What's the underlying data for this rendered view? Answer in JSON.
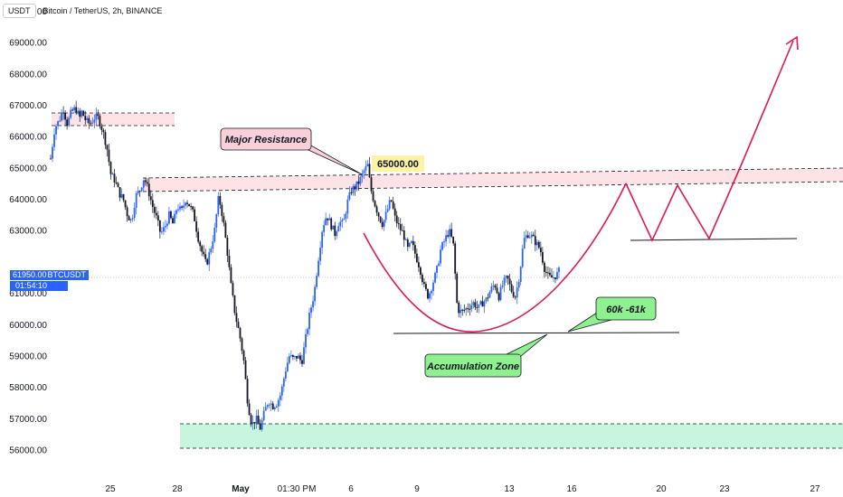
{
  "header": {
    "currency_button": "USDT",
    "title": "Bitcoin / TetherUS, 2h, BINANCE"
  },
  "price_tag": {
    "price": "61950.00",
    "symbol": "BTCUSDT",
    "countdown": "01:54:10"
  },
  "annotations": {
    "resistance_label": "Major Resistance",
    "price_label": "65000.00",
    "zone_label": "Accumulation Zone",
    "range_label": "60k -61k"
  },
  "colors": {
    "up": "#2962ff",
    "down": "#131722",
    "resistance_band": "#fde2e6",
    "support_band": "#c6f6dd",
    "projection": "#e0155c",
    "callout_pink": "#f7d0d8",
    "callout_green": "#8ef08e",
    "price_yellow": "#fdf2a6"
  },
  "chart_data": {
    "type": "candlestick",
    "symbol": "BTCUSDT",
    "interval": "2h",
    "ylim": [
      55800,
      70400
    ],
    "y_ticks": [
      "70000.00",
      "69000.00",
      "68000.00",
      "67000.00",
      "66000.00",
      "65000.00",
      "64000.00",
      "63000.00",
      "61000.00",
      "60000.00",
      "59000.00",
      "58000.00",
      "57000.00",
      "56000.00"
    ],
    "x_ticks": [
      "25",
      "28",
      "May",
      "01:30 PM",
      "6",
      "9",
      "13",
      "16",
      "20",
      "23",
      "27"
    ],
    "last_price": 61950,
    "zones": [
      {
        "name": "resistance top",
        "from": 66800,
        "to": 67200
      },
      {
        "name": "resistance",
        "from": 64900,
        "to": 65400
      },
      {
        "name": "support",
        "from": 56500,
        "to": 57250
      }
    ],
    "levels": [
      60200,
      63150
    ],
    "path": [
      [
        0,
        65300
      ],
      [
        4,
        66300
      ],
      [
        8,
        66500
      ],
      [
        12,
        66900
      ],
      [
        16,
        66400
      ],
      [
        20,
        66800
      ],
      [
        24,
        66900
      ],
      [
        28,
        66600
      ],
      [
        30,
        66800
      ],
      [
        34,
        66500
      ],
      [
        38,
        66400
      ],
      [
        42,
        66600
      ],
      [
        46,
        66600
      ],
      [
        50,
        66200
      ],
      [
        54,
        65700
      ],
      [
        58,
        64800
      ],
      [
        62,
        64600
      ],
      [
        66,
        64200
      ],
      [
        70,
        64000
      ],
      [
        74,
        63500
      ],
      [
        78,
        63300
      ],
      [
        82,
        64100
      ],
      [
        86,
        64300
      ],
      [
        90,
        64700
      ],
      [
        94,
        64300
      ],
      [
        98,
        63800
      ],
      [
        102,
        63400
      ],
      [
        106,
        62900
      ],
      [
        110,
        63100
      ],
      [
        114,
        63500
      ],
      [
        118,
        63200
      ],
      [
        122,
        63800
      ],
      [
        126,
        63600
      ],
      [
        130,
        64000
      ],
      [
        134,
        63800
      ],
      [
        138,
        63500
      ],
      [
        142,
        62800
      ],
      [
        146,
        62300
      ],
      [
        150,
        61900
      ],
      [
        154,
        62400
      ],
      [
        158,
        63000
      ],
      [
        162,
        64100
      ],
      [
        166,
        63400
      ],
      [
        170,
        62400
      ],
      [
        174,
        61200
      ],
      [
        178,
        60300
      ],
      [
        182,
        59700
      ],
      [
        186,
        58900
      ],
      [
        190,
        57500
      ],
      [
        194,
        56800
      ],
      [
        198,
        57000
      ],
      [
        202,
        56700
      ],
      [
        206,
        57200
      ],
      [
        210,
        57600
      ],
      [
        214,
        57400
      ],
      [
        218,
        57500
      ],
      [
        222,
        57800
      ],
      [
        226,
        58500
      ],
      [
        230,
        59000
      ],
      [
        234,
        58900
      ],
      [
        238,
        59000
      ],
      [
        242,
        58800
      ],
      [
        246,
        59600
      ],
      [
        250,
        60400
      ],
      [
        254,
        61000
      ],
      [
        258,
        62100
      ],
      [
        262,
        63100
      ],
      [
        266,
        63500
      ],
      [
        270,
        63200
      ],
      [
        274,
        62900
      ],
      [
        278,
        63300
      ],
      [
        282,
        63200
      ],
      [
        286,
        63900
      ],
      [
        290,
        64300
      ],
      [
        294,
        64400
      ],
      [
        298,
        64600
      ],
      [
        302,
        64900
      ],
      [
        306,
        65100
      ],
      [
        308,
        64400
      ],
      [
        312,
        63900
      ],
      [
        316,
        63500
      ],
      [
        320,
        63200
      ],
      [
        324,
        63600
      ],
      [
        328,
        64000
      ],
      [
        332,
        63400
      ],
      [
        336,
        63100
      ],
      [
        340,
        62900
      ],
      [
        344,
        62400
      ],
      [
        348,
        62600
      ],
      [
        352,
        62200
      ],
      [
        356,
        61800
      ],
      [
        360,
        61200
      ],
      [
        364,
        60900
      ],
      [
        368,
        61300
      ],
      [
        372,
        61700
      ],
      [
        376,
        62400
      ],
      [
        380,
        62700
      ],
      [
        384,
        63000
      ],
      [
        388,
        62600
      ],
      [
        392,
        60500
      ],
      [
        396,
        60400
      ],
      [
        400,
        60500
      ],
      [
        404,
        60600
      ],
      [
        408,
        60700
      ],
      [
        412,
        60500
      ],
      [
        416,
        60700
      ],
      [
        420,
        60800
      ],
      [
        424,
        61100
      ],
      [
        428,
        61300
      ],
      [
        432,
        60900
      ],
      [
        436,
        61300
      ],
      [
        440,
        61500
      ],
      [
        444,
        61100
      ],
      [
        448,
        60900
      ],
      [
        452,
        61600
      ],
      [
        456,
        62700
      ],
      [
        460,
        62900
      ],
      [
        464,
        62800
      ],
      [
        468,
        62600
      ],
      [
        472,
        62400
      ],
      [
        476,
        61800
      ],
      [
        480,
        61500
      ],
      [
        484,
        61500
      ],
      [
        488,
        61600
      ],
      [
        490,
        61700
      ]
    ]
  }
}
